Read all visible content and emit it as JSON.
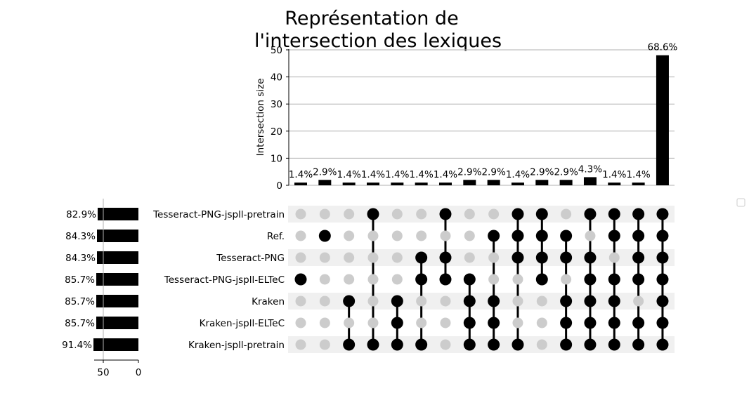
{
  "chart_data": {
    "type": "upset",
    "title_lines": [
      "Représentation de",
      "l'intersection des lexiques"
    ],
    "ylabel": "Intersection size",
    "ylim": [
      0,
      50
    ],
    "yticks": [
      0,
      10,
      20,
      30,
      40,
      50
    ],
    "grid": true,
    "sets": [
      {
        "name": "Tesseract-PNG-jspll-pretrain",
        "pct_label": "82.9%",
        "size": 58
      },
      {
        "name": "Ref.",
        "pct_label": "84.3%",
        "size": 59
      },
      {
        "name": "Tesseract-PNG",
        "pct_label": "84.3%",
        "size": 59
      },
      {
        "name": "Tesseract-PNG-jspll-ELTeC",
        "pct_label": "85.7%",
        "size": 60
      },
      {
        "name": "Kraken",
        "pct_label": "85.7%",
        "size": 60
      },
      {
        "name": "Kraken-jspll-ELTeC",
        "pct_label": "85.7%",
        "size": 60
      },
      {
        "name": "Kraken-jspll-pretrain",
        "pct_label": "91.4%",
        "size": 64
      }
    ],
    "set_size_xticks": [
      50,
      0
    ],
    "intersections": [
      {
        "members": [
          3
        ],
        "size": 1,
        "label": "1.4%"
      },
      {
        "members": [
          1
        ],
        "size": 2,
        "label": "2.9%"
      },
      {
        "members": [
          4,
          6
        ],
        "size": 1,
        "label": "1.4%"
      },
      {
        "members": [
          0,
          6
        ],
        "size": 1,
        "label": "1.4%"
      },
      {
        "members": [
          4,
          5,
          6
        ],
        "size": 1,
        "label": "1.4%"
      },
      {
        "members": [
          2,
          3,
          6
        ],
        "size": 1,
        "label": "1.4%"
      },
      {
        "members": [
          0,
          2,
          3
        ],
        "size": 1,
        "label": "1.4%"
      },
      {
        "members": [
          3,
          4,
          5,
          6
        ],
        "size": 2,
        "label": "2.9%"
      },
      {
        "members": [
          1,
          4,
          5,
          6
        ],
        "size": 2,
        "label": "2.9%"
      },
      {
        "members": [
          0,
          1,
          2,
          6
        ],
        "size": 1,
        "label": "1.4%"
      },
      {
        "members": [
          0,
          1,
          2,
          3
        ],
        "size": 2,
        "label": "2.9%"
      },
      {
        "members": [
          1,
          2,
          4,
          5,
          6
        ],
        "size": 2,
        "label": "2.9%"
      },
      {
        "members": [
          0,
          2,
          3,
          4,
          5,
          6
        ],
        "size": 3,
        "label": "4.3%"
      },
      {
        "members": [
          0,
          1,
          3,
          4,
          5,
          6
        ],
        "size": 1,
        "label": "1.4%"
      },
      {
        "members": [
          0,
          1,
          2,
          3,
          5,
          6
        ],
        "size": 1,
        "label": "1.4%"
      },
      {
        "members": [
          0,
          1,
          2,
          3,
          4,
          5,
          6
        ],
        "size": 48,
        "label": "68.6%"
      }
    ],
    "colors": {
      "bar": "#000000",
      "dot_on": "#000000",
      "dot_off": "#cccccc",
      "shade": "#f0f0f0",
      "grid": "#b0b0b0"
    }
  }
}
